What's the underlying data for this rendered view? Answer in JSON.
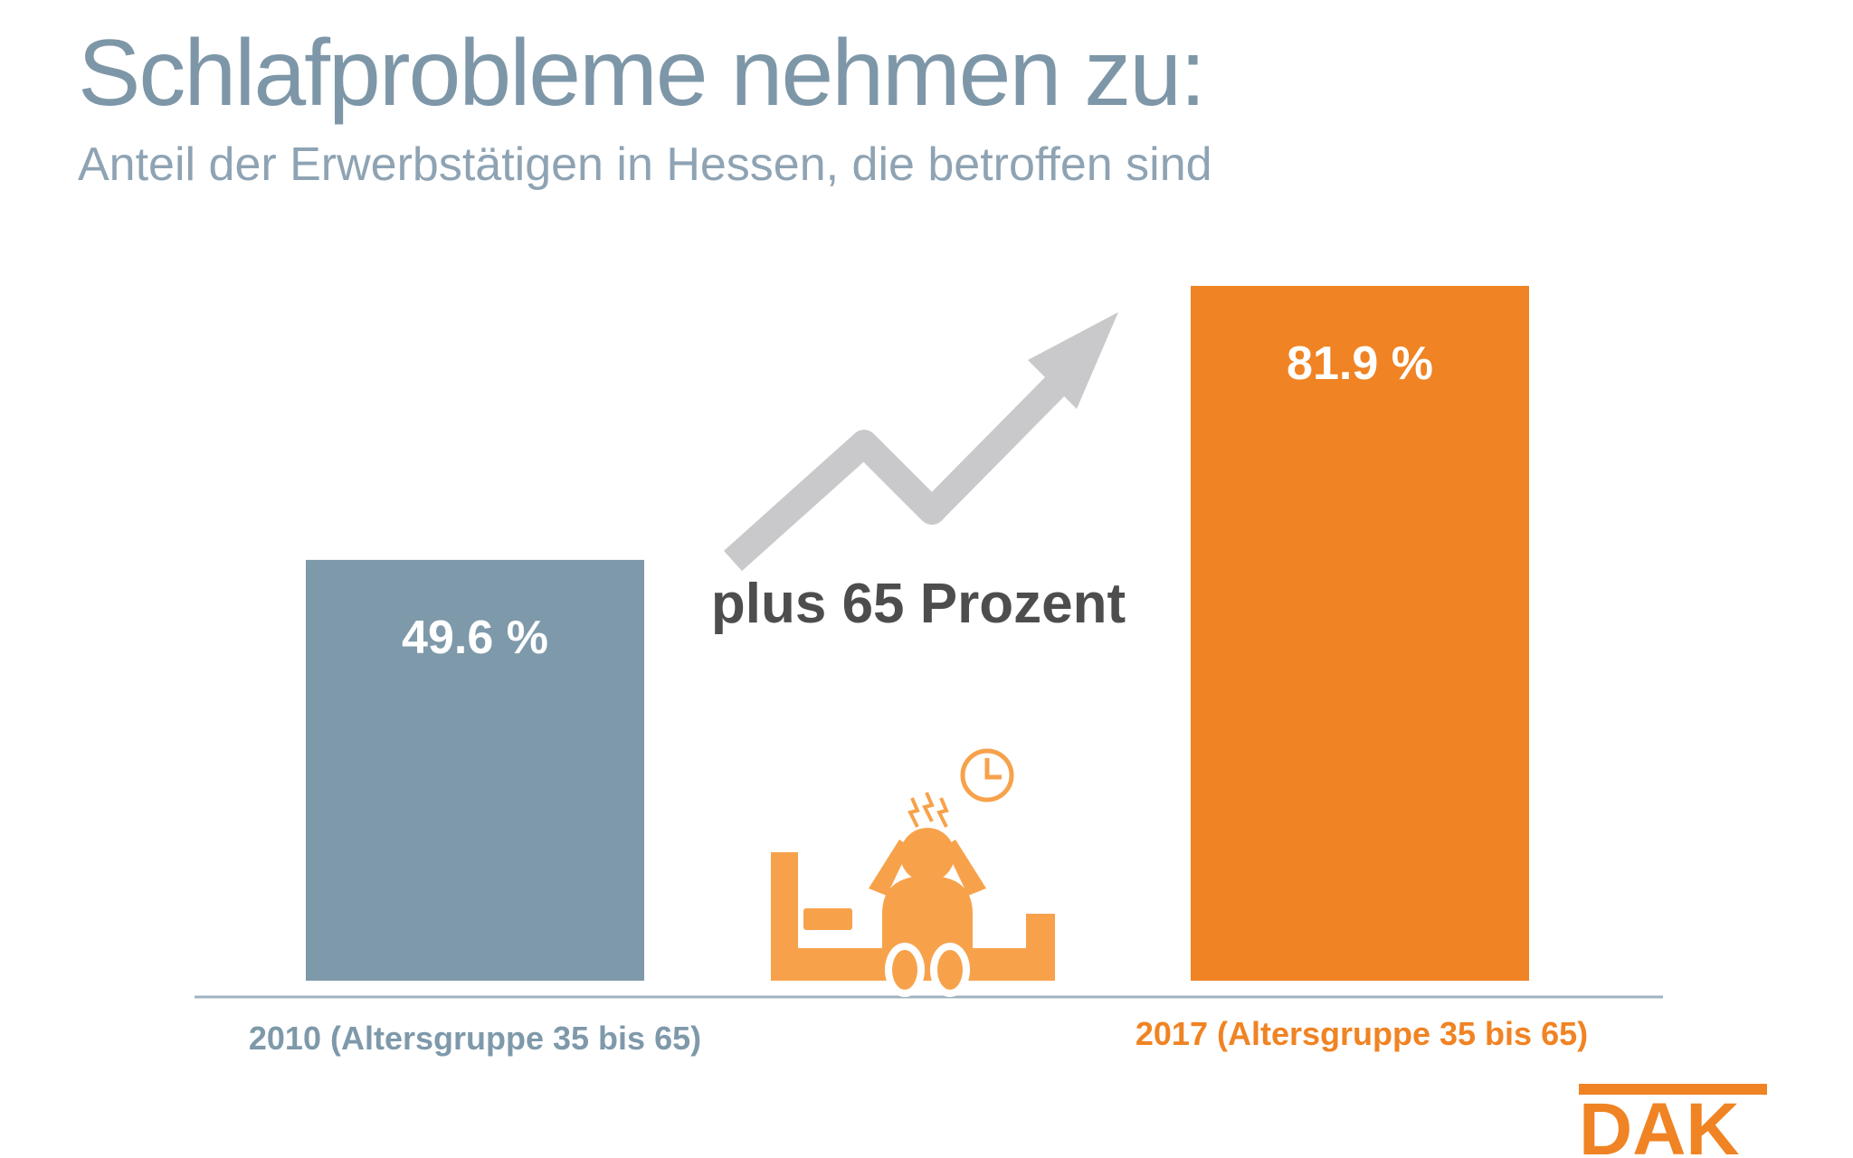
{
  "title": "Schlafprobleme nehmen zu:",
  "subtitle": "Anteil der Erwerbstätigen in Hessen, die betroffen sind",
  "annotation": "plus 65 Prozent",
  "colors": {
    "bar_2010": "#7e99aa",
    "bar_2017": "#f08323",
    "arrow": "#c9c9cb",
    "icon": "#f7a24b",
    "baseline": "#9fb3c0"
  },
  "icons": [
    "trend-arrow-icon",
    "sleepless-person-in-bed-icon",
    "clock-icon"
  ],
  "logo": {
    "text": "DAK"
  },
  "chart_data": {
    "type": "bar",
    "categories": [
      "2010 (Altersgruppe 35 bis 65)",
      "2017 (Altersgruppe 35 bis 65)"
    ],
    "values": [
      49.6,
      81.9
    ],
    "value_labels": [
      "49.6 %",
      "81.9 %"
    ],
    "unit": "%",
    "ylim": [
      0,
      100
    ],
    "grid": false,
    "legend": "none"
  }
}
